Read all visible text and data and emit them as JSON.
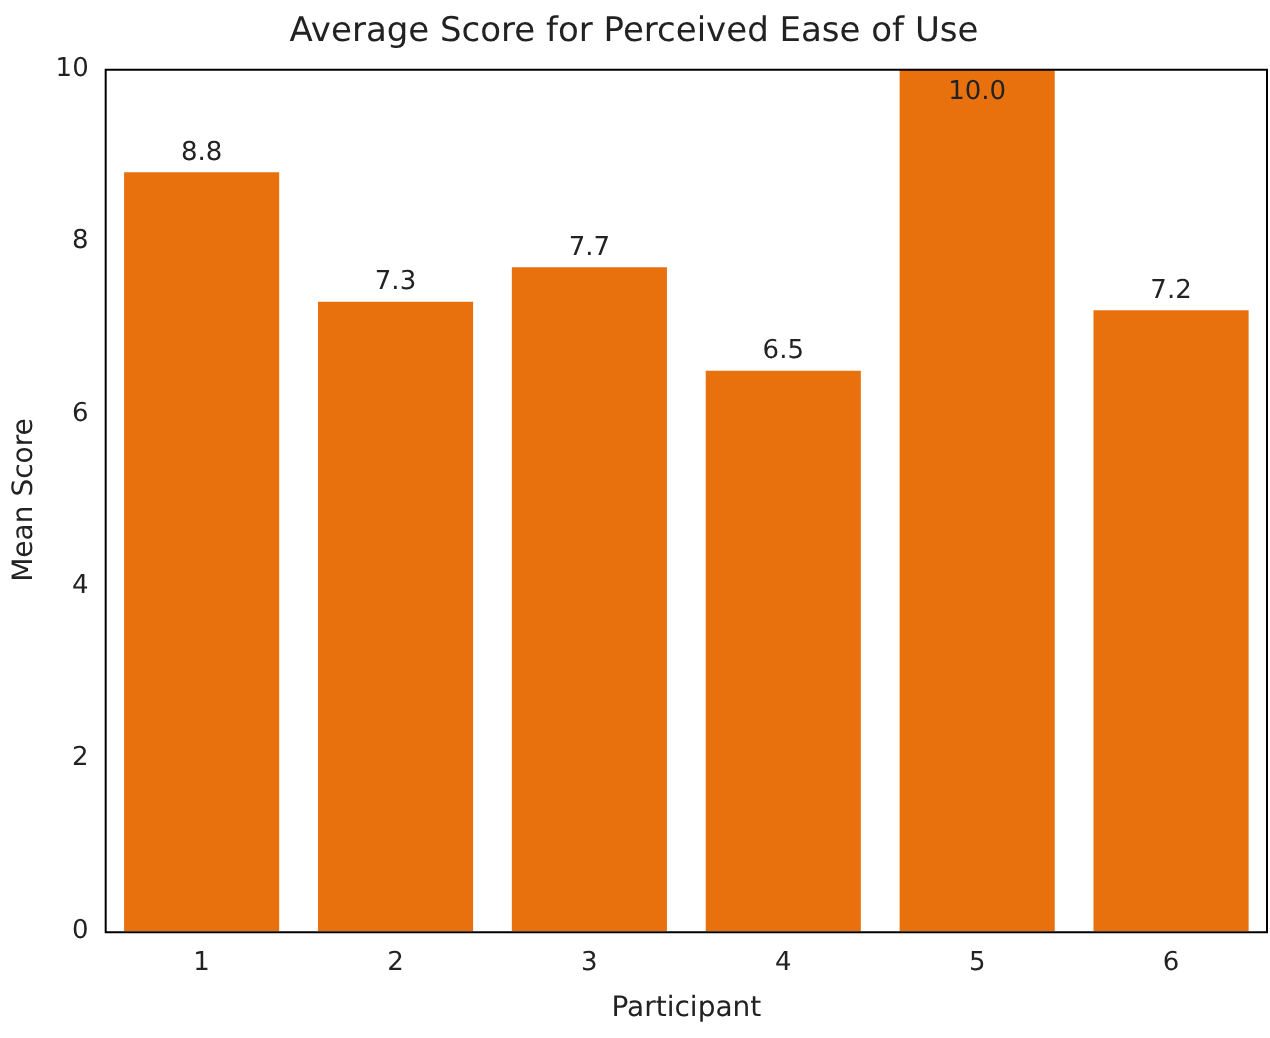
{
  "chart_data": {
    "type": "bar",
    "title": "Average Score for Perceived Ease of Use",
    "xlabel": "Participant",
    "ylabel": "Mean Score",
    "categories": [
      "1",
      "2",
      "3",
      "4",
      "5",
      "6"
    ],
    "values": [
      8.8,
      7.3,
      7.7,
      6.5,
      10.0,
      7.2
    ],
    "value_labels": [
      "8.8",
      "7.3",
      "7.7",
      "6.5",
      "10.0",
      "7.2"
    ],
    "color": "#e8710e",
    "ylim": [
      0,
      10
    ],
    "yticks": [
      0,
      2,
      4,
      6,
      8,
      10
    ],
    "grid": false,
    "legend": false
  }
}
